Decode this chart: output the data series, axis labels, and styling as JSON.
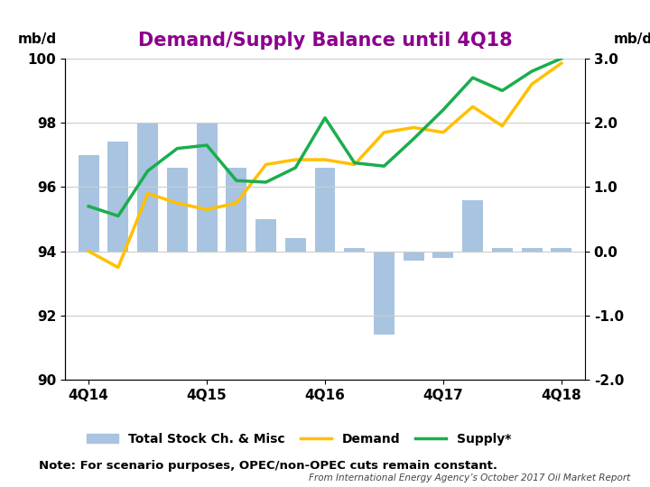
{
  "title": "Demand/Supply Balance until 4Q18",
  "title_color": "#8B008B",
  "ylabel_left": "mb/d",
  "ylabel_right": "mb/d",
  "note": "Note: For scenario purposes, OPEC/non-OPEC cuts remain constant.",
  "source": "From International Energy Agency’s October 2017 Oil Market Report",
  "ylim_left": [
    90,
    100
  ],
  "ylim_right": [
    -2.0,
    3.0
  ],
  "yticks_left": [
    90,
    92,
    94,
    96,
    98,
    100
  ],
  "yticks_right": [
    -2.0,
    -1.0,
    0.0,
    1.0,
    2.0,
    3.0
  ],
  "x_labels": [
    "4Q14",
    "4Q15",
    "4Q16",
    "4Q17",
    "4Q18"
  ],
  "x_tick_positions": [
    0,
    4,
    8,
    12,
    16
  ],
  "n_bars": 17,
  "bar_color": "#a8c4e0",
  "bar_values_right": [
    1.5,
    1.7,
    2.0,
    1.3,
    2.0,
    1.3,
    0.5,
    0.2,
    1.3,
    0.05,
    -1.3,
    -0.15,
    -0.1,
    0.8,
    0.05,
    0.05,
    0.05
  ],
  "demand_values": [
    94.0,
    93.5,
    95.8,
    95.5,
    95.3,
    95.5,
    96.7,
    96.85,
    96.85,
    96.7,
    97.7,
    97.85,
    97.7,
    98.5,
    97.9,
    99.2,
    99.85
  ],
  "supply_values": [
    95.4,
    95.1,
    96.5,
    97.2,
    97.3,
    96.2,
    96.15,
    96.6,
    98.15,
    96.75,
    96.65,
    97.5,
    98.4,
    99.4,
    99.0,
    99.6,
    100.0
  ],
  "demand_color": "#FFC000",
  "supply_color": "#1AAD4E",
  "demand_linewidth": 2.5,
  "supply_linewidth": 2.5,
  "bar_width": 0.7,
  "xlim": [
    -0.8,
    16.8
  ]
}
